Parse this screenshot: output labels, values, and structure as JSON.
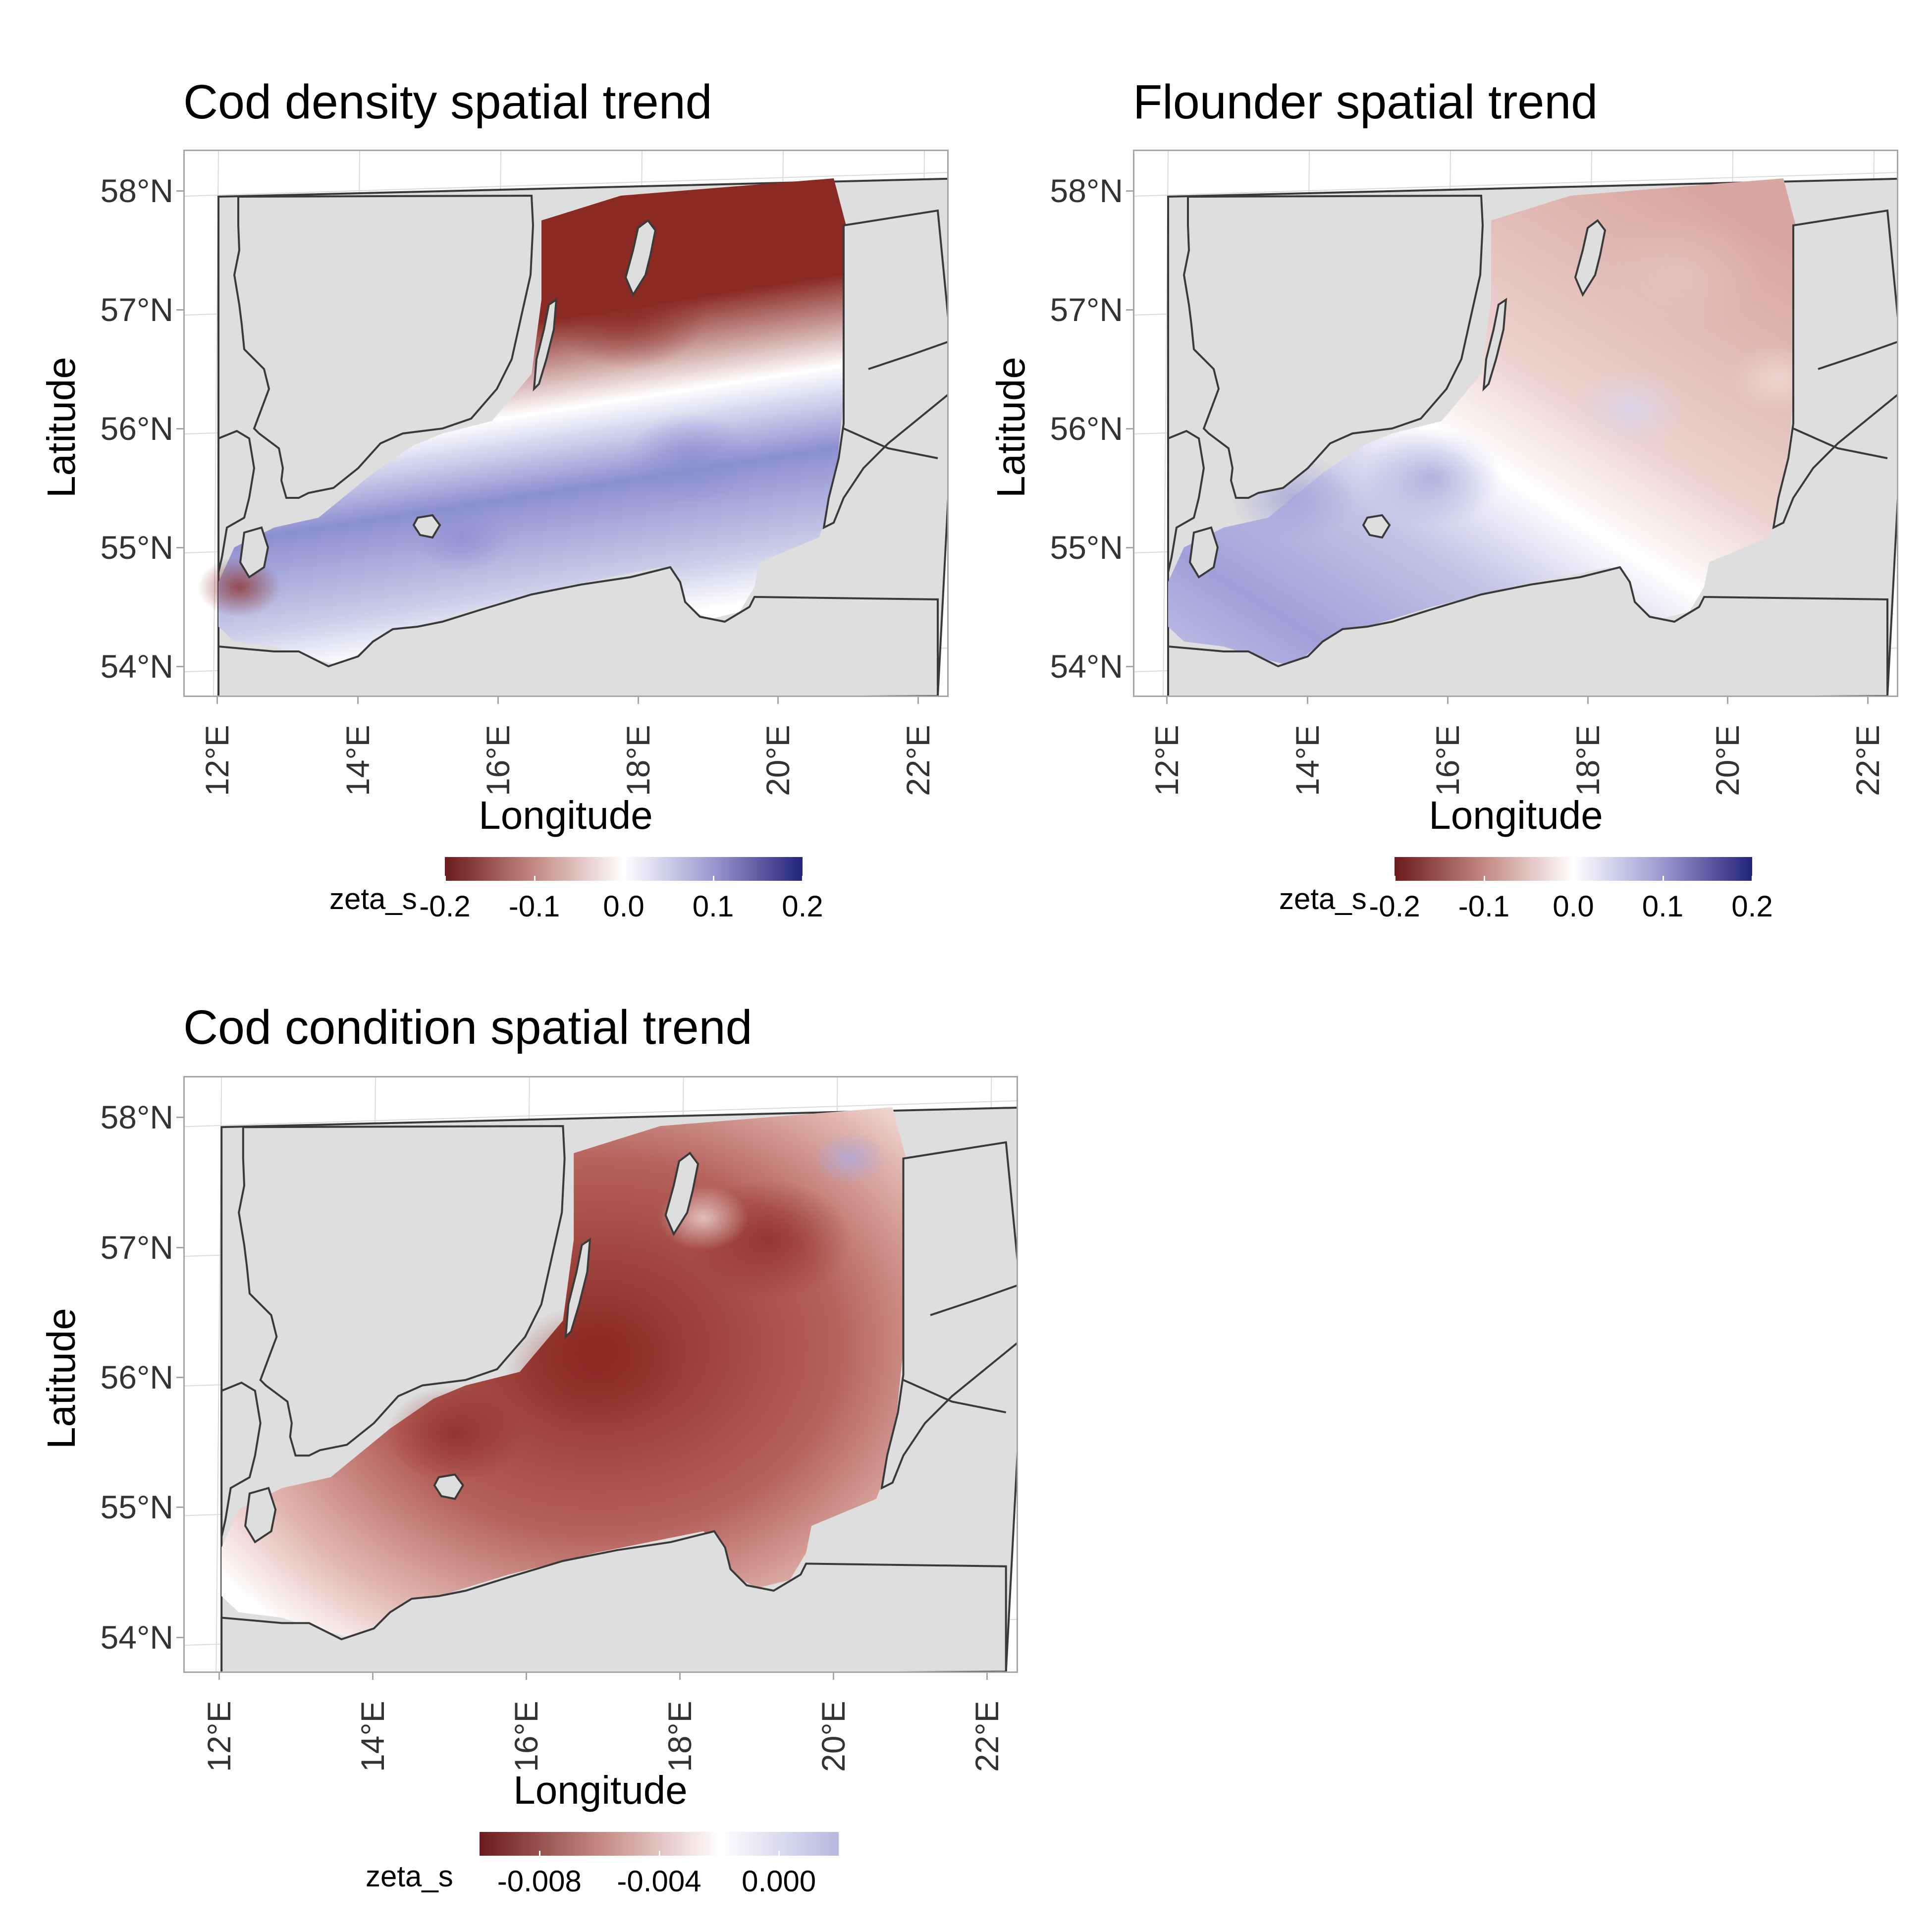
{
  "panels": [
    {
      "title": "Cod density spatial trend",
      "xlabel": "Longitude",
      "ylabel": "Latitude",
      "xticks": [
        "12°E",
        "14°E",
        "16°E",
        "18°E",
        "20°E",
        "22°E"
      ],
      "yticks": [
        "58°N",
        "57°N",
        "56°N",
        "55°N",
        "54°N"
      ],
      "legend": {
        "title": "zeta_s",
        "labels": [
          "-0.2",
          "-0.1",
          "0.0",
          "0.1",
          "0.2"
        ],
        "range": [
          -0.2,
          0.2
        ],
        "colors": [
          "#6b1b1b",
          "#c48882",
          "#ffffff",
          "#9a98d0",
          "#23237a"
        ]
      },
      "field_description_colors": {
        "negative": "#8b2a23",
        "zero": "#ffffff",
        "positive": "#8c8fd0"
      }
    },
    {
      "title": "Flounder spatial trend",
      "xlabel": "Longitude",
      "ylabel": "Latitude",
      "xticks": [
        "12°E",
        "14°E",
        "16°E",
        "18°E",
        "20°E",
        "22°E"
      ],
      "yticks": [
        "58°N",
        "57°N",
        "56°N",
        "55°N",
        "54°N"
      ],
      "legend": {
        "title": "zeta_s",
        "labels": [
          "-0.2",
          "-0.1",
          "0.0",
          "0.1",
          "0.2"
        ],
        "range": [
          -0.2,
          0.2
        ],
        "colors": [
          "#6b1b1b",
          "#c48882",
          "#ffffff",
          "#9a98d0",
          "#23237a"
        ]
      },
      "field_description_colors": {
        "negative": "#d9a7a1",
        "zero": "#ffffff",
        "positive": "#9fa0d8"
      }
    },
    {
      "title": "Cod condition spatial trend",
      "xlabel": "Longitude",
      "ylabel": "Latitude",
      "xticks": [
        "12°E",
        "14°E",
        "16°E",
        "18°E",
        "20°E",
        "22°E"
      ],
      "yticks": [
        "58°N",
        "57°N",
        "56°N",
        "55°N",
        "54°N"
      ],
      "legend": {
        "title": "zeta_s",
        "labels": [
          "-0.008",
          "-0.004",
          "0.000"
        ],
        "range": [
          -0.01,
          0.002
        ],
        "colors": [
          "#6b1b1b",
          "#c48882",
          "#ffffff",
          "#b8b8e0"
        ]
      },
      "field_description_colors": {
        "negative": "#8b2a23",
        "zero": "#ffffff",
        "positive": "#a9a9df"
      }
    }
  ],
  "colors": {
    "land": "#dedede",
    "coast": "#3a3a3a",
    "grid": "#d9d9d9",
    "frame": "#a6a6a6"
  }
}
